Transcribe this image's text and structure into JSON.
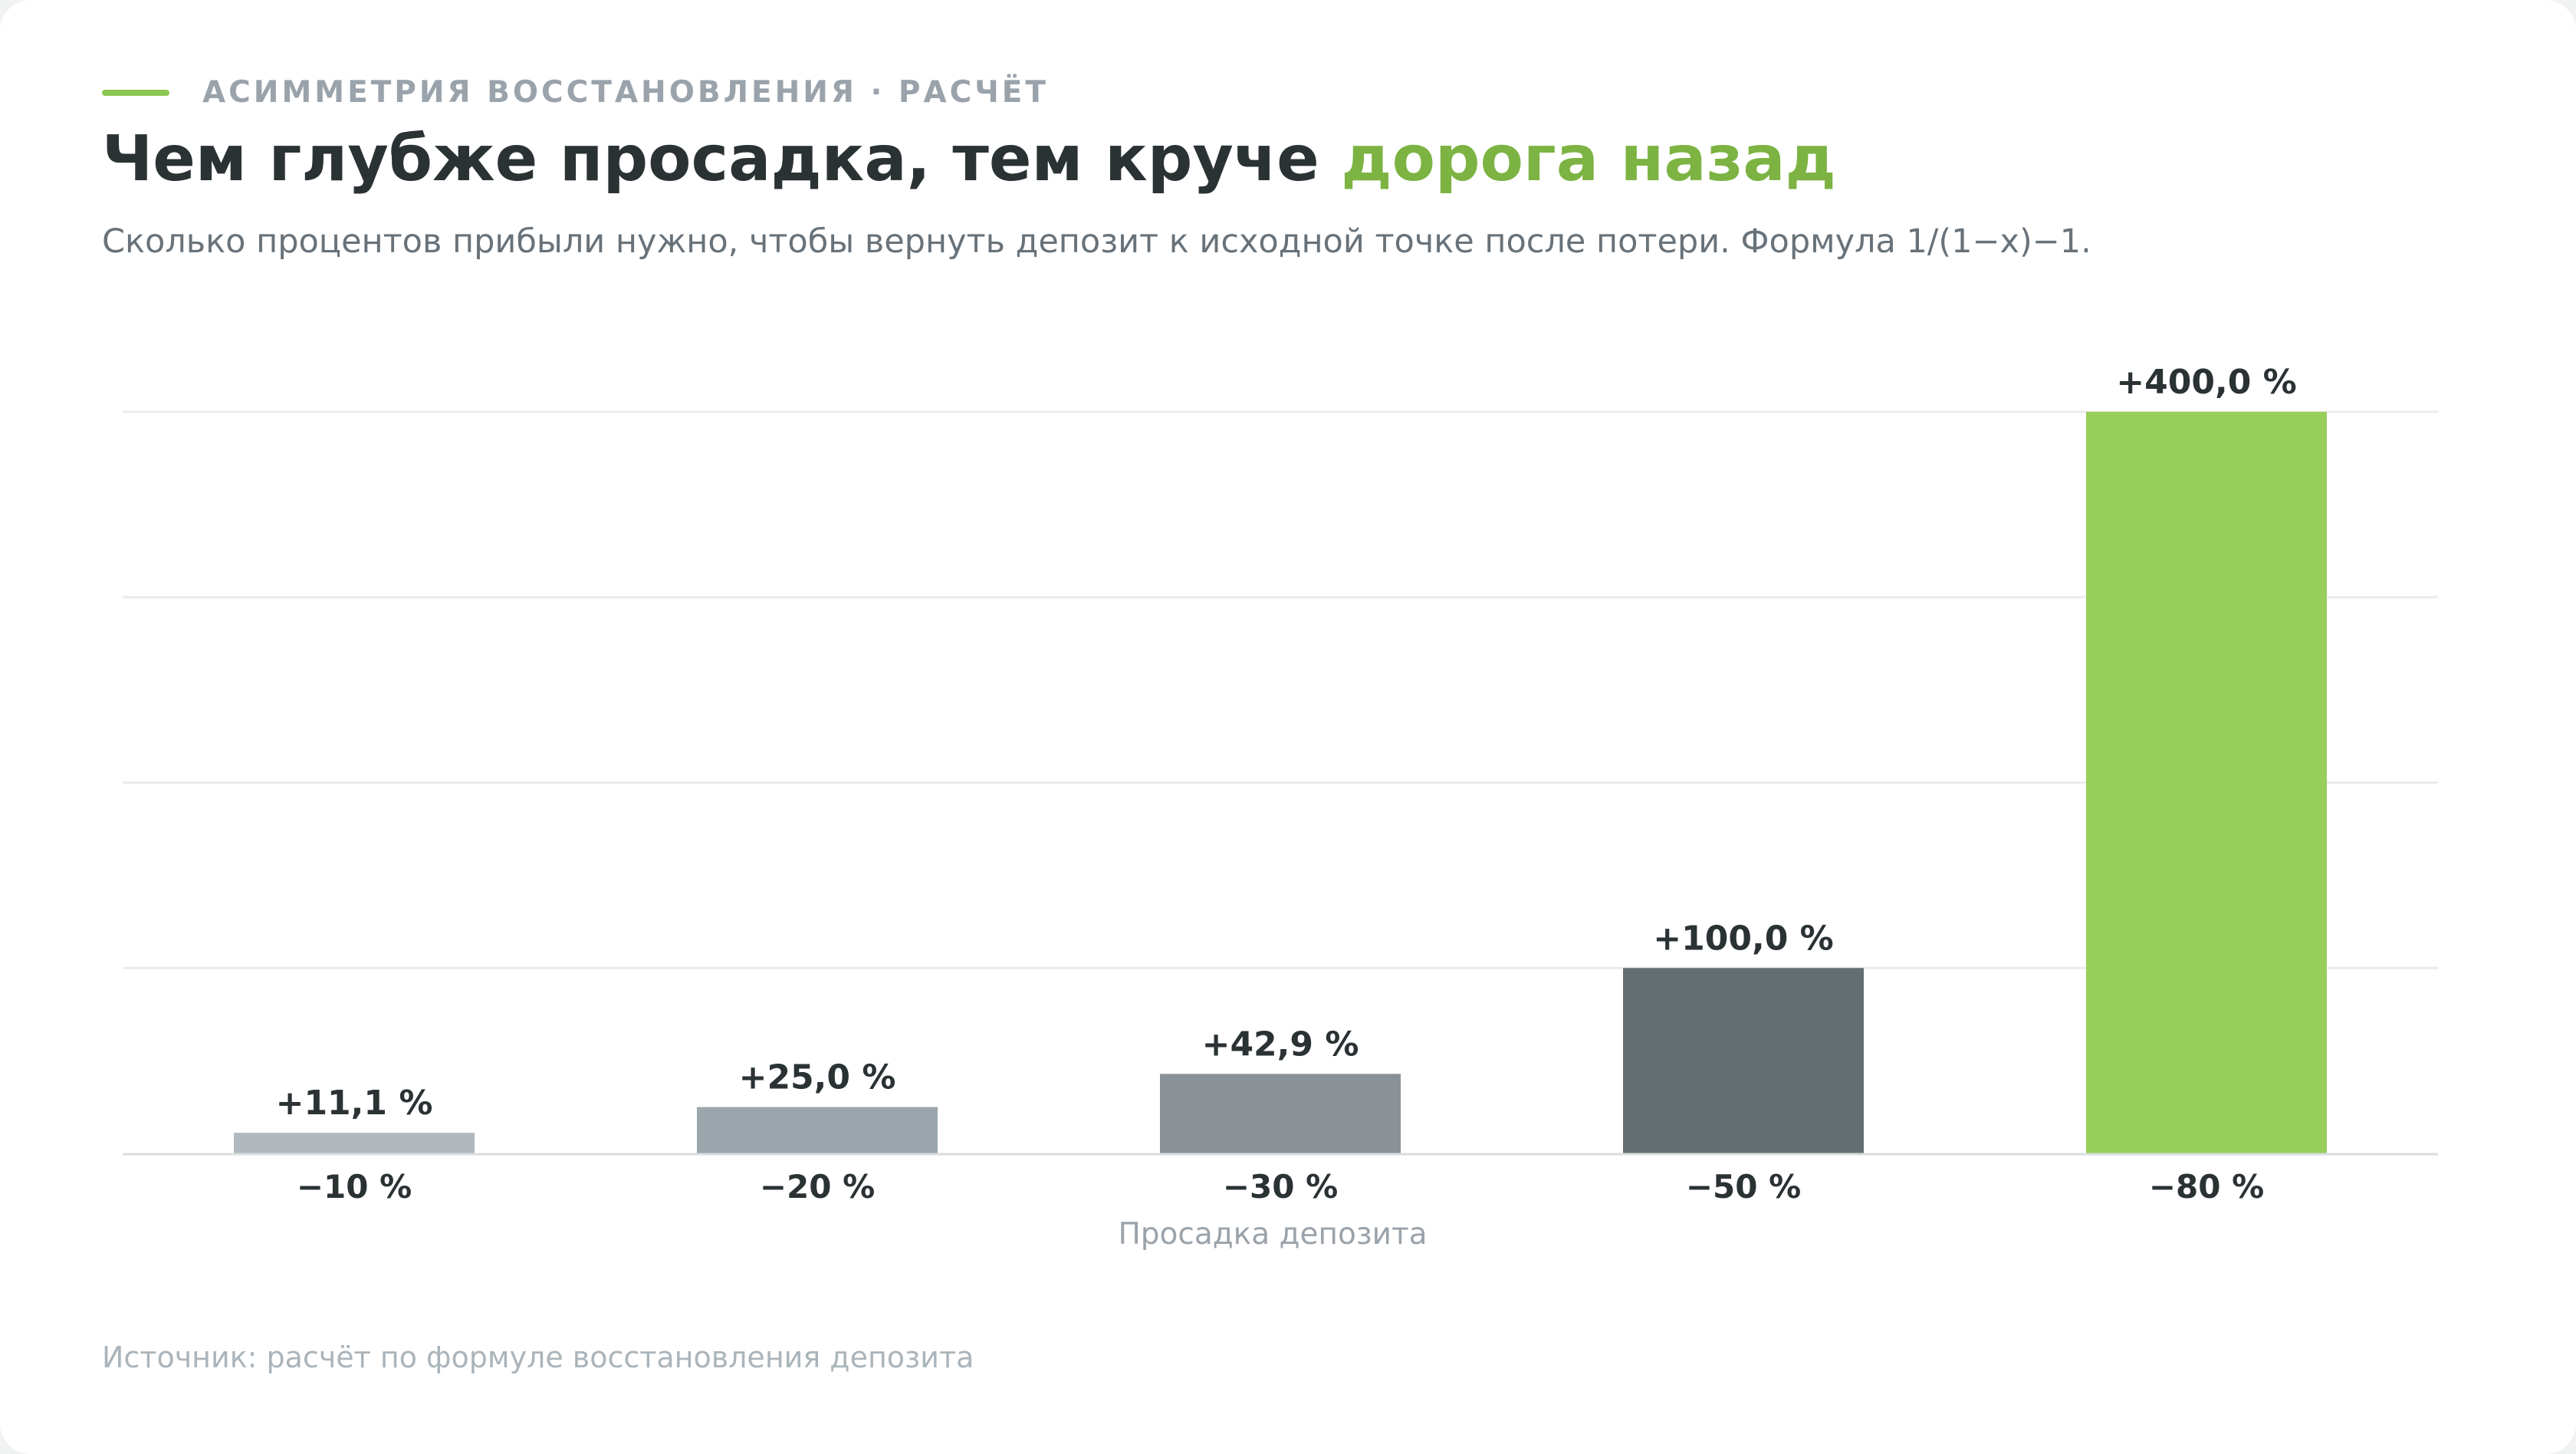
{
  "header": {
    "eyebrow": "Асимметрия восстановления · Расчёт",
    "title_main": "Чем глубже просадка, тем круче ",
    "title_accent": "дорога назад",
    "subtitle": "Сколько процентов прибыли нужно, чтобы вернуть депозит к исходной точке после потери. Формула 1/(1−x)−1."
  },
  "footer": {
    "source": "Источник: расчёт по формуле восстановления депозита"
  },
  "colors": {
    "accent": "#8cc751",
    "text_dark": "#2a3234",
    "grid": "#ececec",
    "axis": "#dadddf"
  },
  "chart_data": {
    "type": "bar",
    "categories": [
      "−10 %",
      "−20 %",
      "−30 %",
      "−50 %",
      "−80 %"
    ],
    "values": [
      11.1,
      25.0,
      42.9,
      100.0,
      400.0
    ],
    "value_labels": [
      "+11,1 %",
      "+25,0 %",
      "+42,9 %",
      "+100,0 %",
      "+400,0 %"
    ],
    "bar_colors": [
      "#b1b9be",
      "#9aa6ac",
      "#8a9298",
      "#646e72",
      "#97cf5a"
    ],
    "xlabel": "Просадка депозита",
    "ylabel": "",
    "ylim": [
      0,
      400
    ],
    "gridlines": [
      100,
      200,
      300,
      400
    ],
    "grid": true
  }
}
